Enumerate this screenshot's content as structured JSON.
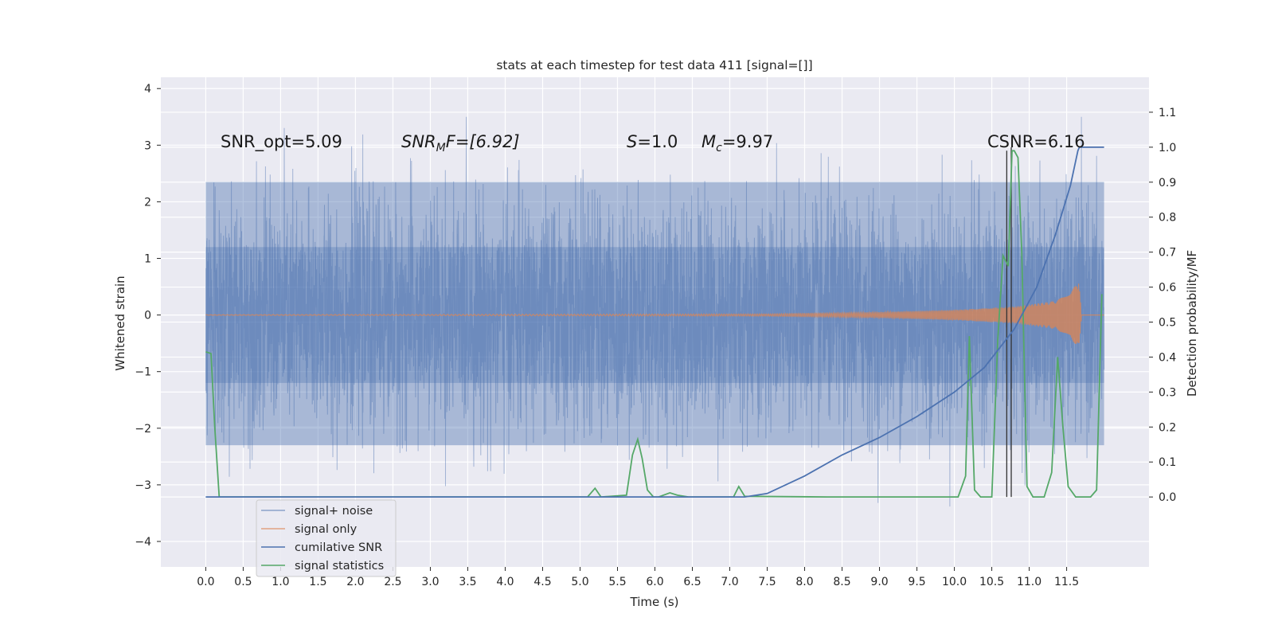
{
  "chart_data": {
    "type": "line",
    "title": "stats at each timestep for test data 411 [signal=[]]",
    "xlabel": "Time (s)",
    "ylabel": "Whitened strain",
    "ylabel_right": "Detection probability/MF",
    "xlim": [
      -0.6,
      12.6
    ],
    "ylim": [
      -4.45,
      4.2
    ],
    "ylim_right": [
      -0.2,
      1.2
    ],
    "x_ticks": [
      "0.0",
      "0.5",
      "1.0",
      "1.5",
      "2.0",
      "2.5",
      "3.0",
      "3.5",
      "4.0",
      "4.5",
      "5.0",
      "5.5",
      "6.0",
      "6.5",
      "7.0",
      "7.5",
      "8.0",
      "8.5",
      "9.0",
      "9.5",
      "10.0",
      "10.5",
      "11.0",
      "11.5"
    ],
    "y_ticks_left": [
      "4",
      "3",
      "2",
      "1",
      "0",
      "−1",
      "−2",
      "−3",
      "−4"
    ],
    "y_ticks_right": [
      "1.1",
      "1.0",
      "0.9",
      "0.8",
      "0.7",
      "0.6",
      "0.5",
      "0.4",
      "0.3",
      "0.2",
      "0.1",
      "0.0"
    ],
    "grid": true,
    "legend_position": "lower-left",
    "colors": {
      "noise": "#4c72b0",
      "signal": "#dd8452",
      "csnr": "#4c72b0",
      "stats": "#55a868",
      "markers": "#333333",
      "background": "#eaeaf2"
    },
    "annotations": {
      "snr_opt": "SNR_opt=5.09",
      "snr_mf_name": "SNR",
      "snr_mf_sub": "M",
      "snr_mf_tail": "F=[6.92]",
      "s_name": "S",
      "s_val": "=1.0",
      "mc_name": "M",
      "mc_sub": "c",
      "mc_val": "=9.97",
      "csnr": "CSNR=6.16"
    },
    "series": [
      {
        "name": "signal+ noise",
        "axis": "left",
        "kind": "band",
        "t_range": [
          0.0,
          12.0
        ],
        "inner_band": [
          -1.2,
          1.2
        ],
        "outer_band": [
          -2.3,
          2.35
        ]
      },
      {
        "name": "signal only",
        "axis": "left",
        "kind": "chirp",
        "envelope_t": [
          0.0,
          7.5,
          9.0,
          10.0,
          10.8,
          11.3,
          11.55,
          11.62,
          11.66,
          11.7
        ],
        "envelope_a": [
          0.005,
          0.02,
          0.05,
          0.09,
          0.15,
          0.24,
          0.36,
          0.56,
          0.68,
          0.0
        ]
      },
      {
        "name": "cumilative SNR",
        "axis": "right",
        "x": [
          0.0,
          7.2,
          7.5,
          8.0,
          8.5,
          9.0,
          9.5,
          10.0,
          10.4,
          10.8,
          11.1,
          11.35,
          11.55,
          11.65,
          11.67,
          12.0
        ],
        "y": [
          0.0,
          0.0,
          0.01,
          0.06,
          0.12,
          0.17,
          0.23,
          0.3,
          0.37,
          0.48,
          0.6,
          0.75,
          0.89,
          0.99,
          1.0,
          1.0
        ]
      },
      {
        "name": "signal statistics",
        "axis": "right",
        "x": [
          0.0,
          0.07,
          0.12,
          0.18,
          0.3,
          2.0,
          3.5,
          5.1,
          5.2,
          5.28,
          5.62,
          5.7,
          5.77,
          5.83,
          5.9,
          5.98,
          6.05,
          6.2,
          6.3,
          6.45,
          7.05,
          7.12,
          7.2,
          8.3,
          10.05,
          10.15,
          10.2,
          10.27,
          10.35,
          10.5,
          10.58,
          10.65,
          10.72,
          10.77,
          10.8,
          10.85,
          10.9,
          10.97,
          11.05,
          11.2,
          11.3,
          11.38,
          11.45,
          11.52,
          11.62,
          11.82,
          11.9,
          11.97
        ],
        "y": [
          0.415,
          0.41,
          0.2,
          0.0,
          0.0,
          0.0,
          0.0,
          0.0,
          0.025,
          0.0,
          0.005,
          0.12,
          0.165,
          0.11,
          0.02,
          0.0,
          0.0,
          0.012,
          0.005,
          0.0,
          0.0,
          0.03,
          0.002,
          0.0,
          0.0,
          0.06,
          0.46,
          0.02,
          0.0,
          0.0,
          0.45,
          0.69,
          0.66,
          0.99,
          0.99,
          0.97,
          0.7,
          0.03,
          0.0,
          0.0,
          0.07,
          0.4,
          0.2,
          0.03,
          0.0,
          0.0,
          0.02,
          0.58
        ]
      },
      {
        "name": "markers",
        "axis": "right",
        "kind": "vlines",
        "x": [
          10.7,
          10.76
        ],
        "y_top": [
          0.99,
          1.0
        ]
      }
    ]
  }
}
